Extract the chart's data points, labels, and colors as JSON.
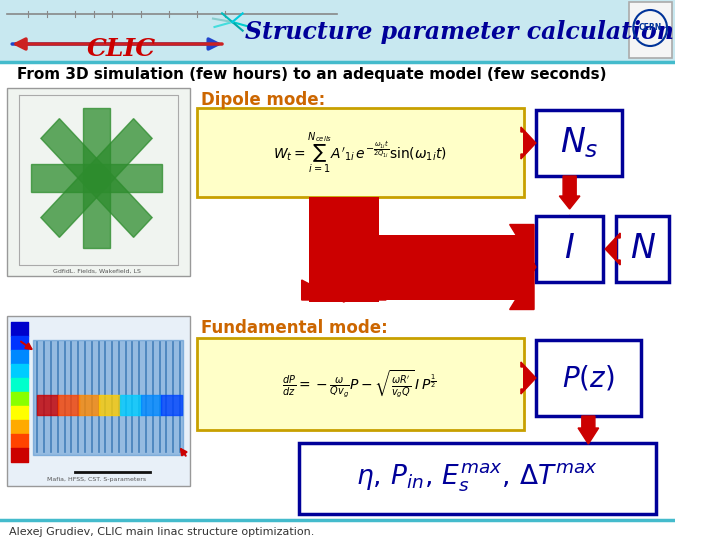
{
  "title": "Structure parameter calculation",
  "subtitle": "From 3D simulation (few hours) to an adequate model (few seconds)",
  "dipole_label": "Dipole mode:",
  "fundamental_label": "Fundamental mode:",
  "dipole_formula": "$W_t = \\sum_{i=1}^{N_{cells}} A'_{1i}\\, e^{-\\frac{\\omega_{1i}t}{2Q_{1i}}} \\sin(\\omega_{1i}t)$",
  "fundamental_formula": "$\\frac{dP}{dz} = -\\frac{\\omega}{Qv_g}P - \\sqrt{\\frac{\\omega R'}{v_g Q}}\\, I\\, P^{\\frac{1}{2}}$",
  "ns_label": "$N_s$",
  "i_label": "$I$",
  "n_label": "$N$",
  "pz_label": "$P(z)$",
  "result_label": "$\\eta,\\, P_{in},\\, E_s^{max},\\, \\Delta T^{max}$",
  "footer": "Alexej Grudiev, CLIC main linac structure optimization.",
  "bg_color": "#ffffff",
  "header_bg": "#c8e8f0",
  "title_color": "#000099",
  "subtitle_color": "#000000",
  "formula_bg": "#ffffc8",
  "formula_border": "#c8a000",
  "box_border": "#000099",
  "box_bg": "#ffffff",
  "result_box_bg": "#ffffff",
  "result_box_border": "#000099",
  "arrow_color": "#cc0000",
  "dipole_label_color": "#cc6600",
  "fundamental_label_color": "#cc6600",
  "clic_color": "#cc0000",
  "header_line_color": "#44bbcc",
  "box_text_color": "#000099"
}
